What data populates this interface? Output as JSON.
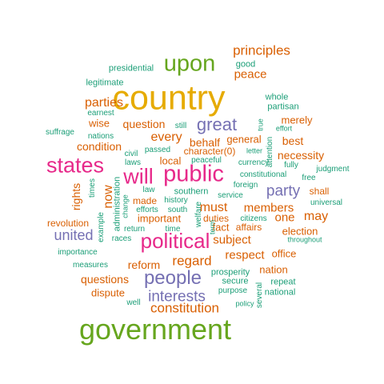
{
  "colors": {
    "teal": "#1b9e77",
    "orange": "#d95f02",
    "purple": "#7570b3",
    "magenta": "#e7298a",
    "green": "#66a61e",
    "gold": "#e6ab02"
  },
  "words": [
    {
      "text": "country",
      "color": "gold"
    },
    {
      "text": "government",
      "color": "green"
    },
    {
      "text": "upon",
      "color": "green"
    },
    {
      "text": "public",
      "color": "magenta"
    },
    {
      "text": "states",
      "color": "magenta"
    },
    {
      "text": "political",
      "color": "magenta"
    },
    {
      "text": "will",
      "color": "magenta"
    },
    {
      "text": "people",
      "color": "purple"
    },
    {
      "text": "great",
      "color": "purple"
    },
    {
      "text": "interests",
      "color": "purple"
    },
    {
      "text": "constitution",
      "color": "orange"
    },
    {
      "text": "party",
      "color": "purple"
    },
    {
      "text": "united",
      "color": "purple"
    },
    {
      "text": "principles",
      "color": "orange"
    },
    {
      "text": "regard",
      "color": "orange"
    },
    {
      "text": "parties",
      "color": "orange"
    },
    {
      "text": "every",
      "color": "orange"
    },
    {
      "text": "must",
      "color": "orange"
    },
    {
      "text": "subject",
      "color": "orange"
    },
    {
      "text": "respect",
      "color": "orange"
    },
    {
      "text": "members",
      "color": "orange"
    },
    {
      "text": "may",
      "color": "orange"
    },
    {
      "text": "one",
      "color": "orange"
    },
    {
      "text": "peace",
      "color": "orange"
    },
    {
      "text": "question",
      "color": "orange"
    },
    {
      "text": "reform",
      "color": "orange"
    },
    {
      "text": "questions",
      "color": "orange"
    },
    {
      "text": "condition",
      "color": "orange"
    },
    {
      "text": "behalf",
      "color": "orange"
    },
    {
      "text": "general",
      "color": "orange"
    },
    {
      "text": "best",
      "color": "orange"
    },
    {
      "text": "necessity",
      "color": "orange"
    },
    {
      "text": "merely",
      "color": "orange"
    },
    {
      "text": "wise",
      "color": "orange"
    },
    {
      "text": "now",
      "color": "orange"
    },
    {
      "text": "rights",
      "color": "orange"
    },
    {
      "text": "local",
      "color": "orange"
    },
    {
      "text": "character(0)",
      "color": "orange"
    },
    {
      "text": "important",
      "color": "orange"
    },
    {
      "text": "election",
      "color": "orange"
    },
    {
      "text": "nation",
      "color": "orange"
    },
    {
      "text": "office",
      "color": "orange"
    },
    {
      "text": "dispute",
      "color": "orange"
    },
    {
      "text": "revolution",
      "color": "orange"
    },
    {
      "text": "made",
      "color": "orange"
    },
    {
      "text": "fact",
      "color": "orange"
    },
    {
      "text": "affairs",
      "color": "orange"
    },
    {
      "text": "shall",
      "color": "orange"
    },
    {
      "text": "duties",
      "color": "orange"
    },
    {
      "text": "good",
      "color": "teal"
    },
    {
      "text": "presidential",
      "color": "teal"
    },
    {
      "text": "legitimate",
      "color": "teal"
    },
    {
      "text": "whole",
      "color": "teal"
    },
    {
      "text": "partisan",
      "color": "teal"
    },
    {
      "text": "earnest",
      "color": "teal"
    },
    {
      "text": "suffrage",
      "color": "teal"
    },
    {
      "text": "nations",
      "color": "teal"
    },
    {
      "text": "still",
      "color": "teal"
    },
    {
      "text": "true",
      "color": "teal"
    },
    {
      "text": "effort",
      "color": "teal"
    },
    {
      "text": "civil",
      "color": "teal"
    },
    {
      "text": "passed",
      "color": "teal"
    },
    {
      "text": "laws",
      "color": "teal"
    },
    {
      "text": "peaceful",
      "color": "teal"
    },
    {
      "text": "letter",
      "color": "teal"
    },
    {
      "text": "currency",
      "color": "teal"
    },
    {
      "text": "attention",
      "color": "teal"
    },
    {
      "text": "fully",
      "color": "teal"
    },
    {
      "text": "free",
      "color": "teal"
    },
    {
      "text": "judgment",
      "color": "teal"
    },
    {
      "text": "times",
      "color": "teal"
    },
    {
      "text": "law",
      "color": "teal"
    },
    {
      "text": "southern",
      "color": "teal"
    },
    {
      "text": "constitutional",
      "color": "teal"
    },
    {
      "text": "foreign",
      "color": "teal"
    },
    {
      "text": "administration",
      "color": "teal"
    },
    {
      "text": "history",
      "color": "teal"
    },
    {
      "text": "service",
      "color": "teal"
    },
    {
      "text": "change",
      "color": "teal"
    },
    {
      "text": "efforts",
      "color": "teal"
    },
    {
      "text": "south",
      "color": "teal"
    },
    {
      "text": "welfare",
      "color": "teal"
    },
    {
      "text": "universal",
      "color": "teal"
    },
    {
      "text": "example",
      "color": "teal"
    },
    {
      "text": "time",
      "color": "teal"
    },
    {
      "text": "term",
      "color": "teal"
    },
    {
      "text": "citizens",
      "color": "teal"
    },
    {
      "text": "importance",
      "color": "teal"
    },
    {
      "text": "return",
      "color": "teal"
    },
    {
      "text": "races",
      "color": "teal"
    },
    {
      "text": "throughout",
      "color": "teal"
    },
    {
      "text": "measures",
      "color": "teal"
    },
    {
      "text": "prosperity",
      "color": "teal"
    },
    {
      "text": "secure",
      "color": "teal"
    },
    {
      "text": "repeat",
      "color": "teal"
    },
    {
      "text": "purpose",
      "color": "teal"
    },
    {
      "text": "national",
      "color": "teal"
    },
    {
      "text": "well",
      "color": "teal"
    },
    {
      "text": "policy",
      "color": "teal"
    },
    {
      "text": "several",
      "color": "teal"
    }
  ]
}
